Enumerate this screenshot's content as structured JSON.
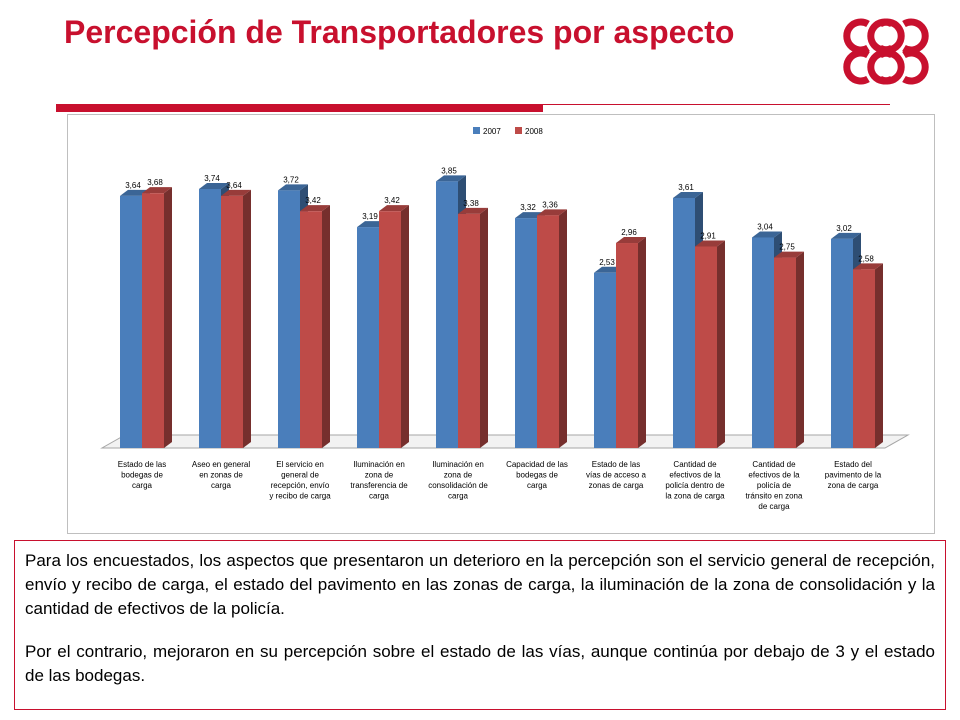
{
  "slide": {
    "title": "Percepción de Transportadores por aspecto"
  },
  "colors": {
    "brand": "#c8102e",
    "series_2007": "#4a7ebb",
    "series_2008": "#be4b48"
  },
  "logo": {
    "icon": "cbb-logo"
  },
  "chart_data": {
    "type": "bar",
    "title": "",
    "xlabel": "",
    "ylabel": "",
    "legend_position": "top",
    "three_d": true,
    "grid": false,
    "ylim": [
      0,
      4.2
    ],
    "categories": [
      "Estado de las bodegas de carga",
      "Aseo en general en zonas de carga",
      "El servicio en general de recepción, envío y recibo de carga",
      "Iluminación en zona de transferencia de carga",
      "Iluminación en zona de consolidación de carga",
      "Capacidad de las bodegas de carga",
      "Estado de las vías de acceso a zonas de carga",
      "Cantidad de efectivos de la policía dentro de la zona de carga",
      "Cantidad de efectivos de la policía de tránsito en zona de carga",
      "Estado del pavimento de la zona de carga"
    ],
    "category_lines": [
      [
        "Estado de las",
        "bodegas de",
        "carga"
      ],
      [
        "Aseo en general",
        "en zonas de",
        "carga"
      ],
      [
        "El servicio en",
        "general de",
        "recepción, envío",
        "y recibo de carga"
      ],
      [
        "Iluminación en",
        "zona de",
        "transferencia de",
        "carga"
      ],
      [
        "Iluminación en",
        "zona de",
        "consolidación de",
        "carga"
      ],
      [
        "Capacidad de las",
        "bodegas de",
        "carga"
      ],
      [
        "Estado de las",
        "vías de acceso a",
        "zonas de carga"
      ],
      [
        "Cantidad de",
        "efectivos de la",
        "policía dentro de",
        "la zona de carga"
      ],
      [
        "Cantidad de",
        "efectivos de la",
        "policía de",
        "tránsito en zona",
        "de carga"
      ],
      [
        "Estado del",
        "pavimento de la",
        "zona de carga"
      ]
    ],
    "series": [
      {
        "name": "2007",
        "values": [
          3.64,
          3.74,
          3.72,
          3.19,
          3.85,
          3.32,
          2.53,
          3.61,
          3.04,
          3.02
        ],
        "labels": [
          "3,64",
          "3,74",
          "3,72",
          "3,19",
          "3,85",
          "3,32",
          "2,53",
          "3,61",
          "3,04",
          "3,02"
        ]
      },
      {
        "name": "2008",
        "values": [
          3.68,
          3.64,
          3.42,
          3.42,
          3.38,
          3.36,
          2.96,
          2.91,
          2.75,
          2.58
        ],
        "labels": [
          "3,68",
          "3,64",
          "3,42",
          "3,42",
          "3,38",
          "3,36",
          "2,96",
          "2,91",
          "2,75",
          "2,58"
        ]
      }
    ]
  },
  "summary": {
    "paragraph1": "Para los encuestados, los aspectos que presentaron un deterioro en la percepción son el servicio general de recepción, envío y recibo de carga, el estado del pavimento en las zonas de carga, la iluminación de la zona de consolidación y la cantidad de efectivos de la policía.",
    "paragraph2": "Por el contrario, mejoraron en su percepción sobre el estado de las vías, aunque continúa por debajo de 3 y el estado de las bodegas."
  }
}
